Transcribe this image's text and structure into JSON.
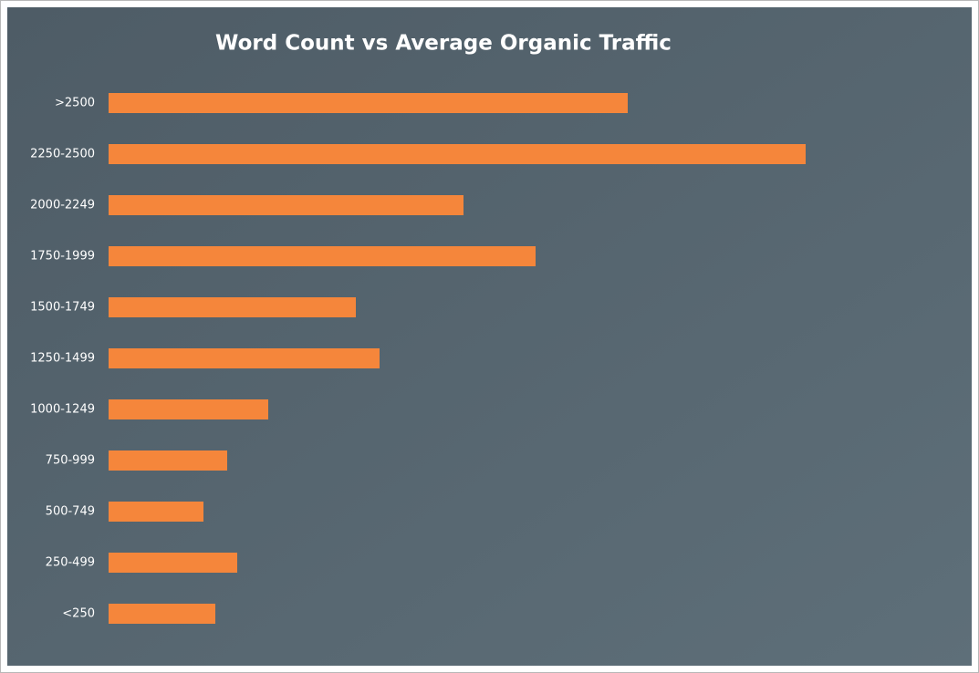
{
  "chart_data": {
    "type": "bar",
    "orientation": "horizontal",
    "title": "Word Count vs Average Organic Traffic",
    "categories": [
      ">2500",
      "2250-2500",
      "2000-2249",
      "1750-1999",
      "1500-1749",
      "1250-1499",
      "1000-1249",
      "750-999",
      "500-749",
      "250-499",
      "<250"
    ],
    "values": [
      569,
      764,
      389,
      468,
      271,
      297,
      175,
      130,
      104,
      141,
      117
    ],
    "color": "#f5863b"
  }
}
